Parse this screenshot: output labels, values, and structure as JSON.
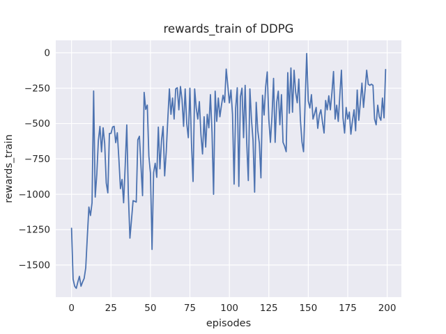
{
  "figure": {
    "title": "rewards_train of DDPG",
    "xlabel": "episodes",
    "ylabel": "rewards_train"
  },
  "chart_data": {
    "type": "line",
    "title": "rewards_train of DDPG",
    "xlabel": "episodes",
    "ylabel": "rewards_train",
    "xlim": [
      -10,
      209
    ],
    "ylim": [
      -1727,
      88
    ],
    "x_ticks": [
      0,
      25,
      50,
      75,
      100,
      125,
      150,
      175,
      200
    ],
    "x_tick_labels": [
      "0",
      "25",
      "50",
      "75",
      "100",
      "125",
      "150",
      "175",
      "200"
    ],
    "y_ticks": [
      0,
      -250,
      -500,
      -750,
      -1000,
      -1250,
      -1500
    ],
    "y_tick_labels": [
      "0",
      "−250",
      "−500",
      "−750",
      "−1000",
      "−1250",
      "−1500"
    ],
    "grid": true,
    "legend": false,
    "background_color": "#eaeaf2",
    "grid_color": "#ffffff",
    "line_color": "#4c72b0",
    "text_color": "#262626",
    "series": [
      {
        "name": "rewards_train",
        "x_start": 0,
        "x_step": 1,
        "values": [
          -1240,
          -1600,
          -1650,
          -1665,
          -1620,
          -1580,
          -1650,
          -1620,
          -1595,
          -1520,
          -1300,
          -1090,
          -1150,
          -1060,
          -270,
          -1020,
          -860,
          -620,
          -520,
          -700,
          -530,
          -640,
          -920,
          -990,
          -570,
          -570,
          -525,
          -520,
          -635,
          -565,
          -750,
          -960,
          -895,
          -1060,
          -800,
          -510,
          -1000,
          -1310,
          -1180,
          -1045,
          -1050,
          -1055,
          -615,
          -590,
          -800,
          -1010,
          -280,
          -400,
          -370,
          -730,
          -850,
          -1390,
          -847,
          -781,
          -880,
          -525,
          -820,
          -620,
          -520,
          -870,
          -700,
          -468,
          -255,
          -435,
          -320,
          -468,
          -255,
          -247,
          -403,
          -238,
          -330,
          -520,
          -255,
          -500,
          -600,
          -250,
          -640,
          -910,
          -255,
          -390,
          -468,
          -345,
          -580,
          -715,
          -452,
          -666,
          -435,
          -530,
          -296,
          -560,
          -1000,
          -271,
          -485,
          -320,
          -452,
          -370,
          -300,
          -350,
          -115,
          -230,
          -354,
          -263,
          -435,
          -928,
          -390,
          -247,
          -944,
          -310,
          -250,
          -600,
          -230,
          -633,
          -903,
          -255,
          -470,
          -620,
          -985,
          -350,
          -550,
          -640,
          -884,
          -300,
          -440,
          -240,
          -135,
          -468,
          -633,
          -450,
          -181,
          -633,
          -350,
          -271,
          -509,
          -296,
          -633,
          -660,
          -699,
          -140,
          -427,
          -107,
          -420,
          -123,
          -280,
          -353,
          -186,
          -473,
          -630,
          -699,
          -353,
          -5,
          -340,
          -390,
          -296,
          -468,
          -430,
          -386,
          -534,
          -440,
          -403,
          -490,
          -567,
          -337,
          -403,
          -304,
          -403,
          -280,
          -132,
          -468,
          -370,
          -485,
          -300,
          -123,
          -460,
          -567,
          -386,
          -468,
          -419,
          -575,
          -480,
          -403,
          -551,
          -263,
          -477,
          -350,
          -214,
          -386,
          -260,
          -123,
          -222,
          -230,
          -222,
          -230,
          -468,
          -509,
          -370,
          -452,
          -477,
          -320,
          -460,
          -118
        ]
      }
    ]
  }
}
